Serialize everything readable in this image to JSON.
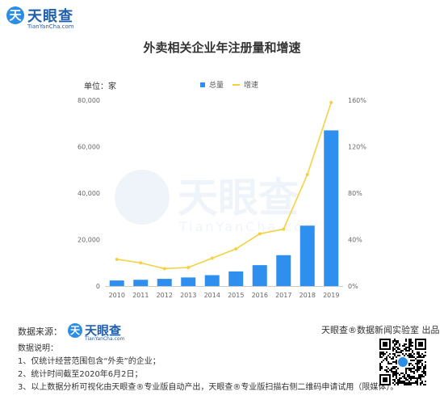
{
  "header": {
    "logo_badge": "天",
    "logo_name": "天眼查",
    "logo_domain": "TianYanCha.com"
  },
  "chart_data": {
    "type": "bar",
    "title": "外卖相关企业年注册量和增速",
    "unit_label": "单位：家",
    "categories": [
      "2010",
      "2011",
      "2012",
      "2013",
      "2014",
      "2015",
      "2016",
      "2017",
      "2018",
      "2019"
    ],
    "series": [
      {
        "name": "总量",
        "type": "bar",
        "axis": "left",
        "color": "#2e8fee",
        "values": [
          2400,
          2700,
          3100,
          3700,
          4700,
          6300,
          9000,
          13300,
          26000,
          67000
        ]
      },
      {
        "name": "增速",
        "type": "line",
        "axis": "right",
        "color": "#f5d142",
        "values": [
          0.23,
          0.2,
          0.15,
          0.16,
          0.24,
          0.32,
          0.45,
          0.49,
          0.96,
          1.58
        ]
      }
    ],
    "y_left": {
      "min": 0,
      "max": 80000,
      "ticks": [
        "0",
        "20,000",
        "40,000",
        "60,000",
        "80,000"
      ]
    },
    "y_right": {
      "min": 0,
      "max": 1.6,
      "ticks": [
        "0%",
        "40%",
        "80%",
        "120%",
        "160%"
      ]
    },
    "grid": false,
    "legend_position": "top-center"
  },
  "watermark": {
    "name": "天眼查",
    "domain": "TianYanCha.com"
  },
  "footer": {
    "source_label": "数据来源：",
    "source_logo_badge": "天",
    "source_logo_name": "天眼查",
    "source_logo_domain": "TianYanCha.com",
    "credit": "天眼查®数据新闻实验室 出品",
    "notes_title": "数据说明：",
    "notes": [
      "1、仅统计经营范围包含“外卖”的企业；",
      "2、统计时间截至2020年6月2日；",
      "3、以上数据分析可视化由天眼查®专业版自动产出，天眼查®专业版扫描右侧二维码申请试用（限媒体）。"
    ]
  }
}
